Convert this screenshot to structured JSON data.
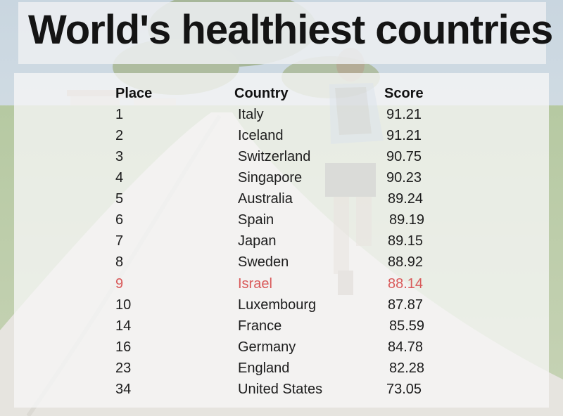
{
  "title": "World's healthiest countries",
  "table": {
    "headers": {
      "place": "Place",
      "country": "Country",
      "score": "Score"
    },
    "rows": [
      {
        "place": "1",
        "country": "Italy",
        "score": "91.21"
      },
      {
        "place": "2",
        "country": "Iceland",
        "score": "91.21"
      },
      {
        "place": "3",
        "country": "Switzerland",
        "score": "90.75"
      },
      {
        "place": "4",
        "country": "Singapore",
        "score": "90.23"
      },
      {
        "place": "5",
        "country": "Australia",
        "score": "89.24"
      },
      {
        "place": "6",
        "country": "Spain",
        "score": "89.19"
      },
      {
        "place": "7",
        "country": "Japan",
        "score": "89.15"
      },
      {
        "place": "8",
        "country": "Sweden",
        "score": "88.92"
      },
      {
        "place": "9",
        "country": "Israel",
        "score": "88.14"
      },
      {
        "place": "10",
        "country": "Luxembourg",
        "score": "87.87"
      },
      {
        "place": "14",
        "country": "France",
        "score": "85.59"
      },
      {
        "place": "16",
        "country": "Germany",
        "score": "84.78"
      },
      {
        "place": "23",
        "country": "England",
        "score": "82.28"
      },
      {
        "place": "34",
        "country": "United States",
        "score": "73.05"
      }
    ]
  },
  "colors": {
    "highlight_row": "#d95a5a",
    "text": "#1c1c1c"
  },
  "chart_data": {
    "type": "table",
    "columns": [
      "Place",
      "Country",
      "Score"
    ],
    "rows": [
      [
        1,
        "Italy",
        91.21
      ],
      [
        2,
        "Iceland",
        91.21
      ],
      [
        3,
        "Switzerland",
        90.75
      ],
      [
        4,
        "Singapore",
        90.23
      ],
      [
        5,
        "Australia",
        89.24
      ],
      [
        6,
        "Spain",
        89.19
      ],
      [
        7,
        "Japan",
        89.15
      ],
      [
        8,
        "Sweden",
        88.92
      ],
      [
        9,
        "Israel",
        88.14
      ],
      [
        10,
        "Luxembourg",
        87.87
      ],
      [
        14,
        "France",
        85.59
      ],
      [
        16,
        "Germany",
        84.78
      ],
      [
        23,
        "England",
        82.28
      ],
      [
        34,
        "United States",
        73.05
      ]
    ],
    "title": "World's healthiest countries"
  }
}
